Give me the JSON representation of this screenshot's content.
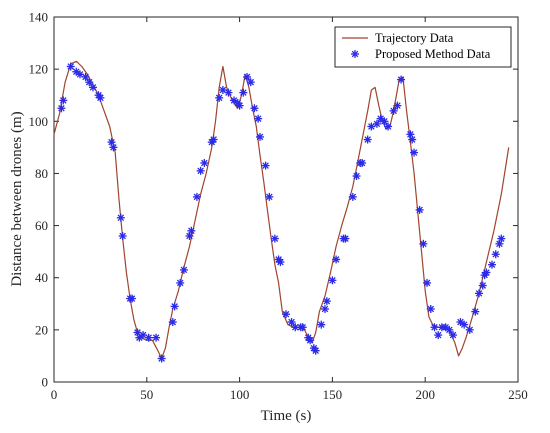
{
  "chart_data": {
    "type": "line",
    "xlabel": "Time (s)",
    "ylabel": "Distance between drones (m)",
    "xlim": [
      0,
      250
    ],
    "ylim": [
      0,
      140
    ],
    "xticks": [
      0,
      50,
      100,
      150,
      200,
      250
    ],
    "yticks": [
      0,
      20,
      40,
      60,
      80,
      100,
      120,
      140
    ],
    "grid": false,
    "legend_position": "top-right",
    "series": [
      {
        "name": "Trajectory Data",
        "style": "line",
        "color": "#a0442c",
        "points": [
          [
            0,
            95
          ],
          [
            3,
            103
          ],
          [
            6,
            115
          ],
          [
            9,
            122
          ],
          [
            12,
            123
          ],
          [
            15,
            121
          ],
          [
            18,
            118
          ],
          [
            21,
            114
          ],
          [
            24,
            110
          ],
          [
            27,
            104
          ],
          [
            30,
            98
          ],
          [
            33,
            88
          ],
          [
            35,
            70
          ],
          [
            37,
            55
          ],
          [
            39,
            42
          ],
          [
            41,
            32
          ],
          [
            43,
            24
          ],
          [
            45,
            19
          ],
          [
            47,
            17
          ],
          [
            50,
            16
          ],
          [
            53,
            16
          ],
          [
            56,
            12
          ],
          [
            58,
            9
          ],
          [
            60,
            13
          ],
          [
            62,
            21
          ],
          [
            64,
            28
          ],
          [
            67,
            35
          ],
          [
            70,
            44
          ],
          [
            73,
            52
          ],
          [
            76,
            62
          ],
          [
            79,
            72
          ],
          [
            82,
            80
          ],
          [
            85,
            90
          ],
          [
            87,
            100
          ],
          [
            89,
            113
          ],
          [
            91,
            121
          ],
          [
            93,
            113
          ],
          [
            96,
            108
          ],
          [
            99,
            105
          ],
          [
            101,
            110
          ],
          [
            103,
            118
          ],
          [
            105,
            113
          ],
          [
            107,
            105
          ],
          [
            109,
            98
          ],
          [
            111,
            87
          ],
          [
            113,
            77
          ],
          [
            115,
            66
          ],
          [
            117,
            55
          ],
          [
            119,
            45
          ],
          [
            121,
            38
          ],
          [
            123,
            27
          ],
          [
            126,
            22
          ],
          [
            129,
            21
          ],
          [
            132,
            21
          ],
          [
            135,
            20
          ],
          [
            137,
            17
          ],
          [
            139,
            15
          ],
          [
            141,
            19
          ],
          [
            143,
            27
          ],
          [
            146,
            33
          ],
          [
            149,
            42
          ],
          [
            152,
            52
          ],
          [
            155,
            60
          ],
          [
            158,
            67
          ],
          [
            161,
            75
          ],
          [
            163,
            82
          ],
          [
            166,
            93
          ],
          [
            169,
            104
          ],
          [
            171,
            112
          ],
          [
            173,
            113
          ],
          [
            175,
            106
          ],
          [
            177,
            100
          ],
          [
            179,
            97
          ],
          [
            181,
            98
          ],
          [
            183,
            104
          ],
          [
            186,
            116
          ],
          [
            188,
            117
          ],
          [
            190,
            104
          ],
          [
            192,
            92
          ],
          [
            194,
            80
          ],
          [
            196,
            65
          ],
          [
            198,
            50
          ],
          [
            200,
            35
          ],
          [
            202,
            25
          ],
          [
            204,
            22
          ],
          [
            207,
            21
          ],
          [
            210,
            21
          ],
          [
            213,
            20
          ],
          [
            216,
            15
          ],
          [
            218,
            10
          ],
          [
            220,
            13
          ],
          [
            222,
            17
          ],
          [
            225,
            24
          ],
          [
            229,
            34
          ],
          [
            233,
            46
          ],
          [
            237,
            58
          ],
          [
            241,
            72
          ],
          [
            245,
            90
          ]
        ]
      },
      {
        "name": "Proposed Method Data",
        "style": "markers",
        "color": "#2a2ae8",
        "points": [
          [
            4,
            105
          ],
          [
            5,
            108
          ],
          [
            9,
            121
          ],
          [
            12,
            119
          ],
          [
            14,
            118
          ],
          [
            17,
            117
          ],
          [
            19,
            115
          ],
          [
            21,
            113
          ],
          [
            24,
            110
          ],
          [
            25,
            109
          ],
          [
            31,
            92
          ],
          [
            32,
            90
          ],
          [
            36,
            63
          ],
          [
            37,
            56
          ],
          [
            41,
            32
          ],
          [
            42,
            32
          ],
          [
            45,
            19
          ],
          [
            46,
            17
          ],
          [
            48,
            18
          ],
          [
            51,
            17
          ],
          [
            55,
            17
          ],
          [
            58,
            9
          ],
          [
            64,
            23
          ],
          [
            65,
            29
          ],
          [
            68,
            38
          ],
          [
            70,
            43
          ],
          [
            73,
            56
          ],
          [
            74,
            58
          ],
          [
            77,
            71
          ],
          [
            79,
            81
          ],
          [
            81,
            84
          ],
          [
            85,
            92
          ],
          [
            86,
            93
          ],
          [
            89,
            109
          ],
          [
            91,
            112
          ],
          [
            94,
            111
          ],
          [
            97,
            108
          ],
          [
            99,
            107
          ],
          [
            100,
            106
          ],
          [
            102,
            111
          ],
          [
            104,
            117
          ],
          [
            106,
            115
          ],
          [
            108,
            105
          ],
          [
            110,
            101
          ],
          [
            111,
            94
          ],
          [
            114,
            83
          ],
          [
            116,
            71
          ],
          [
            119,
            55
          ],
          [
            121,
            47
          ],
          [
            122,
            46
          ],
          [
            125,
            26
          ],
          [
            128,
            23
          ],
          [
            130,
            21
          ],
          [
            133,
            21
          ],
          [
            134,
            21
          ],
          [
            137,
            17
          ],
          [
            138,
            16
          ],
          [
            140,
            13
          ],
          [
            141,
            12
          ],
          [
            144,
            22
          ],
          [
            146,
            28
          ],
          [
            147,
            31
          ],
          [
            150,
            39
          ],
          [
            152,
            47
          ],
          [
            156,
            55
          ],
          [
            157,
            55
          ],
          [
            161,
            71
          ],
          [
            163,
            79
          ],
          [
            165,
            84
          ],
          [
            166,
            84
          ],
          [
            169,
            93
          ],
          [
            171,
            98
          ],
          [
            174,
            99
          ],
          [
            176,
            101
          ],
          [
            178,
            100
          ],
          [
            180,
            98
          ],
          [
            183,
            104
          ],
          [
            185,
            106
          ],
          [
            187,
            116
          ],
          [
            192,
            95
          ],
          [
            193,
            93
          ],
          [
            194,
            88
          ],
          [
            197,
            66
          ],
          [
            199,
            53
          ],
          [
            201,
            38
          ],
          [
            203,
            28
          ],
          [
            205,
            21
          ],
          [
            207,
            18
          ],
          [
            209,
            21
          ],
          [
            211,
            21
          ],
          [
            213,
            20
          ],
          [
            215,
            18
          ],
          [
            219,
            23
          ],
          [
            221,
            22
          ],
          [
            224,
            20
          ],
          [
            227,
            27
          ],
          [
            229,
            34
          ],
          [
            231,
            37
          ],
          [
            232,
            41
          ],
          [
            233,
            42
          ],
          [
            236,
            45
          ],
          [
            238,
            49
          ],
          [
            240,
            53
          ],
          [
            241,
            55
          ]
        ]
      }
    ]
  }
}
